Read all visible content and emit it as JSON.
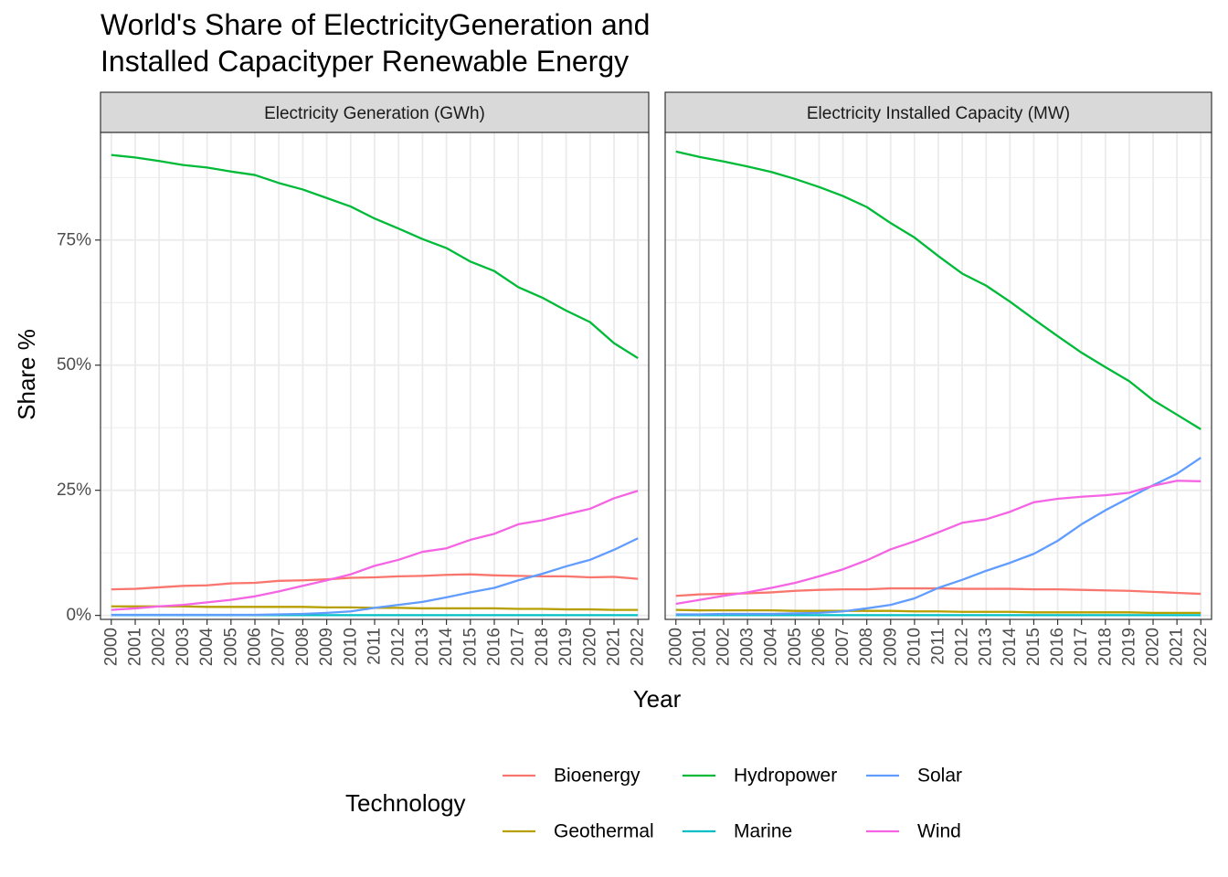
{
  "chart_data": {
    "type": "line",
    "title": "World's Share of ElectricityGeneration and Installed Capacityper Renewable Energy",
    "title_lines": [
      "World's Share of ElectricityGeneration and",
      "Installed Capacityper Renewable Energy"
    ],
    "xlabel": "Year",
    "ylabel": "Share %",
    "y_ticks": [
      0,
      25,
      50,
      75
    ],
    "y_tick_labels": [
      "0%",
      "25%",
      "50%",
      "75%"
    ],
    "ylim": [
      -0.8,
      96.5
    ],
    "xlim": [
      1999.55,
      2022.45
    ],
    "years": [
      2000,
      2001,
      2002,
      2003,
      2004,
      2005,
      2006,
      2007,
      2008,
      2009,
      2010,
      2011,
      2012,
      2013,
      2014,
      2015,
      2016,
      2017,
      2018,
      2019,
      2020,
      2021,
      2022
    ],
    "grid": true,
    "legend": {
      "title": "Technology",
      "position": "bottom",
      "entries": [
        {
          "name": "Bioenergy",
          "color": "#F8766D"
        },
        {
          "name": "Geothermal",
          "color": "#B79F00"
        },
        {
          "name": "Hydropower",
          "color": "#00BA38"
        },
        {
          "name": "Marine",
          "color": "#00BFC4"
        },
        {
          "name": "Solar",
          "color": "#619CFF"
        },
        {
          "name": "Wind",
          "color": "#F564E3"
        }
      ]
    },
    "panels": [
      {
        "strip": "Electricity Generation (GWh)",
        "series": [
          {
            "name": "Bioenergy",
            "values": [
              5.2,
              5.3,
              5.6,
              5.9,
              6.0,
              6.4,
              6.5,
              6.9,
              7.0,
              7.2,
              7.5,
              7.6,
              7.8,
              7.9,
              8.1,
              8.2,
              8.0,
              7.9,
              7.8,
              7.8,
              7.6,
              7.7,
              7.3
            ]
          },
          {
            "name": "Geothermal",
            "values": [
              1.8,
              1.8,
              1.8,
              1.8,
              1.7,
              1.7,
              1.7,
              1.7,
              1.7,
              1.6,
              1.6,
              1.5,
              1.5,
              1.4,
              1.4,
              1.4,
              1.4,
              1.3,
              1.3,
              1.2,
              1.2,
              1.1,
              1.1
            ]
          },
          {
            "name": "Hydropower",
            "values": [
              92.0,
              91.5,
              90.8,
              90.0,
              89.5,
              88.7,
              88.0,
              86.4,
              85.1,
              83.4,
              81.7,
              79.3,
              77.3,
              75.2,
              73.4,
              70.7,
              68.8,
              65.6,
              63.5,
              60.9,
              58.6,
              54.4,
              51.4
            ]
          },
          {
            "name": "Marine",
            "values": [
              0.05,
              0.05,
              0.05,
              0.05,
              0.05,
              0.05,
              0.05,
              0.05,
              0.05,
              0.05,
              0.05,
              0.05,
              0.05,
              0.05,
              0.05,
              0.05,
              0.05,
              0.05,
              0.05,
              0.05,
              0.05,
              0.05,
              0.05
            ]
          },
          {
            "name": "Solar",
            "values": [
              0.1,
              0.1,
              0.1,
              0.1,
              0.1,
              0.1,
              0.1,
              0.2,
              0.3,
              0.5,
              0.8,
              1.5,
              2.1,
              2.7,
              3.6,
              4.6,
              5.5,
              7.0,
              8.3,
              9.8,
              11.1,
              13.1,
              15.4
            ]
          },
          {
            "name": "Wind",
            "values": [
              1.1,
              1.4,
              1.8,
              2.1,
              2.6,
              3.1,
              3.8,
              4.8,
              5.9,
              7.0,
              8.2,
              9.9,
              11.1,
              12.7,
              13.4,
              15.1,
              16.3,
              18.2,
              19.0,
              20.2,
              21.3,
              23.4,
              24.9
            ]
          }
        ]
      },
      {
        "strip": "Electricity Installed Capacity (MW)",
        "series": [
          {
            "name": "Bioenergy",
            "values": [
              3.9,
              4.2,
              4.3,
              4.4,
              4.6,
              4.9,
              5.1,
              5.2,
              5.2,
              5.4,
              5.4,
              5.4,
              5.3,
              5.3,
              5.3,
              5.2,
              5.2,
              5.1,
              5.0,
              4.9,
              4.7,
              4.5,
              4.3
            ]
          },
          {
            "name": "Geothermal",
            "values": [
              1.1,
              1.0,
              1.0,
              1.0,
              1.0,
              0.9,
              0.9,
              0.9,
              0.9,
              0.9,
              0.8,
              0.8,
              0.7,
              0.7,
              0.7,
              0.6,
              0.6,
              0.6,
              0.6,
              0.6,
              0.5,
              0.5,
              0.5
            ]
          },
          {
            "name": "Hydropower",
            "values": [
              92.7,
              91.6,
              90.7,
              89.7,
              88.6,
              87.2,
              85.6,
              83.8,
              81.6,
              78.4,
              75.5,
              71.8,
              68.3,
              65.9,
              62.7,
              59.2,
              55.8,
              52.5,
              49.6,
              46.8,
              43.0,
              40.1,
              37.2
            ]
          },
          {
            "name": "Marine",
            "values": [
              0.05,
              0.05,
              0.05,
              0.05,
              0.05,
              0.05,
              0.05,
              0.05,
              0.05,
              0.05,
              0.05,
              0.05,
              0.05,
              0.05,
              0.05,
              0.05,
              0.05,
              0.05,
              0.05,
              0.05,
              0.05,
              0.05,
              0.05
            ]
          },
          {
            "name": "Solar",
            "values": [
              0.2,
              0.2,
              0.3,
              0.3,
              0.3,
              0.4,
              0.5,
              0.8,
              1.4,
              2.1,
              3.4,
              5.5,
              7.1,
              8.9,
              10.5,
              12.3,
              14.9,
              18.2,
              21.0,
              23.5,
              26.0,
              28.3,
              31.5
            ]
          },
          {
            "name": "Wind",
            "values": [
              2.3,
              3.1,
              3.9,
              4.6,
              5.5,
              6.5,
              7.8,
              9.2,
              11.0,
              13.2,
              14.8,
              16.6,
              18.5,
              19.2,
              20.7,
              22.6,
              23.3,
              23.7,
              24.0,
              24.5,
              25.9,
              26.9,
              26.8
            ]
          }
        ]
      }
    ]
  }
}
